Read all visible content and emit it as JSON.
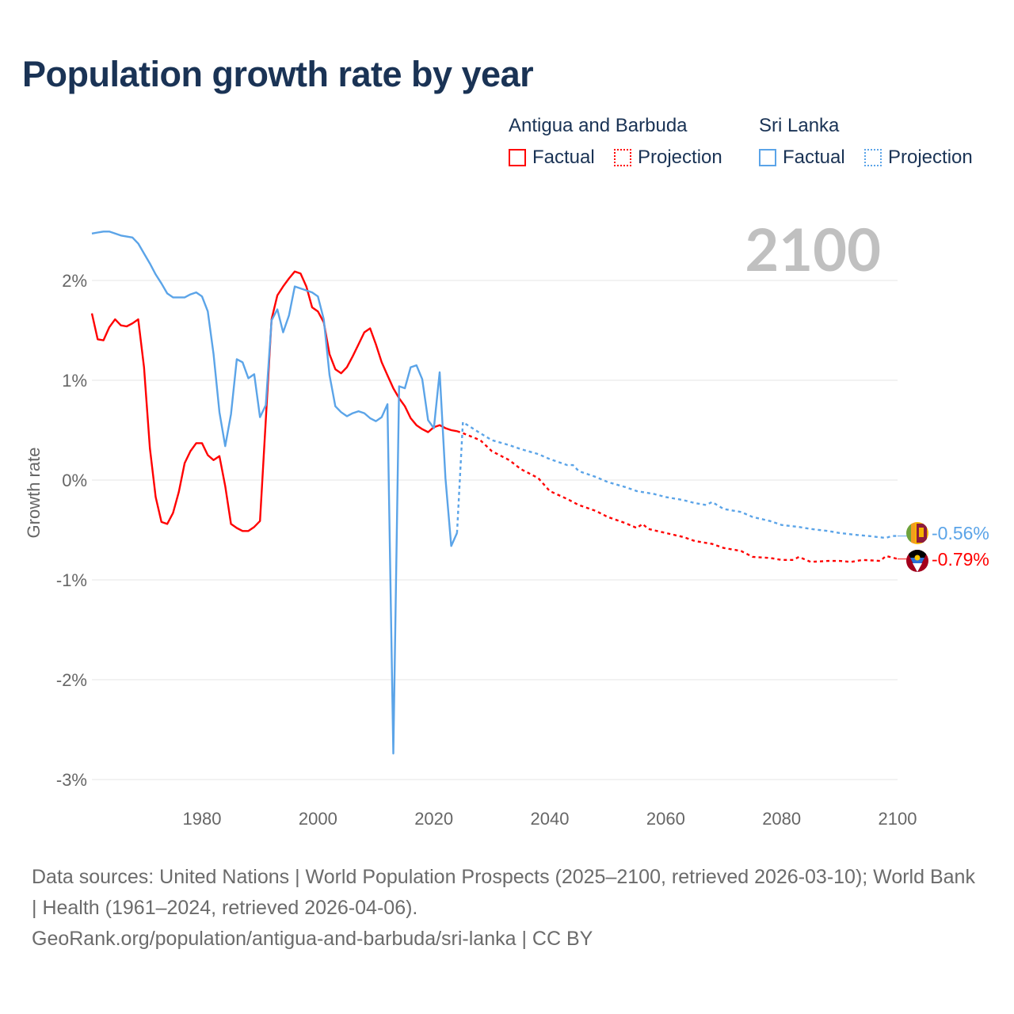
{
  "title": "Population growth rate by year",
  "legend": {
    "groups": [
      {
        "name": "Antigua and Barbuda",
        "color": "#ff0000",
        "factual": "Factual",
        "projection": "Projection"
      },
      {
        "name": "Sri Lanka",
        "color": "#5ba4e8",
        "factual": "Factual",
        "projection": "Projection"
      }
    ]
  },
  "year_label": "2100",
  "end_labels": {
    "sri_lanka": "-0.56%",
    "antigua": "-0.79%"
  },
  "footer": {
    "sources": "Data sources: United Nations | World Population Prospects (2025–2100, retrieved 2026-03-10); World Bank | Health (1961–2024, retrieved 2026-04-06).",
    "credit": "GeoRank.org/population/antigua-and-barbuda/sri-lanka | CC BY"
  },
  "chart_data": {
    "type": "line",
    "title": "Population growth rate by year",
    "xlabel": "",
    "ylabel": "Growth rate",
    "xlim": [
      1961,
      2100
    ],
    "ylim": [
      -3.2,
      2.6
    ],
    "x_ticks": [
      1980,
      2000,
      2020,
      2040,
      2060,
      2080,
      2100
    ],
    "y_ticks": [
      2,
      1,
      0,
      -1,
      -2,
      -3
    ],
    "y_tick_labels": [
      "2%",
      "1%",
      "0%",
      "-1%",
      "-2%",
      "-3%"
    ],
    "grid": true,
    "legend_position": "top-right",
    "series": [
      {
        "name": "Antigua and Barbuda",
        "color": "#ff0000",
        "factual_start": 1961,
        "factual": [
          1.67,
          1.41,
          1.4,
          1.53,
          1.61,
          1.55,
          1.54,
          1.57,
          1.61,
          1.13,
          0.32,
          -0.17,
          -0.42,
          -0.44,
          -0.33,
          -0.12,
          0.17,
          0.29,
          0.37,
          0.37,
          0.25,
          0.2,
          0.24,
          -0.06,
          -0.44,
          -0.48,
          -0.51,
          -0.51,
          -0.47,
          -0.41,
          0.6,
          1.61,
          1.85,
          1.94,
          2.02,
          2.09,
          2.07,
          1.94,
          1.73,
          1.69,
          1.58,
          1.26,
          1.11,
          1.07,
          1.13,
          1.24,
          1.36,
          1.48,
          1.52,
          1.36,
          1.18,
          1.05,
          0.92,
          0.82,
          0.74,
          0.62,
          0.55,
          0.51,
          0.48,
          0.53,
          0.55,
          0.52,
          0.5,
          0.49
        ],
        "projection": [
          [
            2025,
            0.47
          ],
          [
            2028,
            0.4
          ],
          [
            2030,
            0.29
          ],
          [
            2033,
            0.2
          ],
          [
            2035,
            0.11
          ],
          [
            2038,
            0.02
          ],
          [
            2040,
            -0.11
          ],
          [
            2043,
            -0.19
          ],
          [
            2045,
            -0.25
          ],
          [
            2048,
            -0.31
          ],
          [
            2050,
            -0.37
          ],
          [
            2053,
            -0.43
          ],
          [
            2055,
            -0.48
          ],
          [
            2056,
            -0.44
          ],
          [
            2057,
            -0.49
          ],
          [
            2060,
            -0.53
          ],
          [
            2063,
            -0.57
          ],
          [
            2065,
            -0.61
          ],
          [
            2068,
            -0.64
          ],
          [
            2070,
            -0.68
          ],
          [
            2073,
            -0.71
          ],
          [
            2075,
            -0.77
          ],
          [
            2078,
            -0.78
          ],
          [
            2080,
            -0.8
          ],
          [
            2082,
            -0.8
          ],
          [
            2083,
            -0.77
          ],
          [
            2085,
            -0.82
          ],
          [
            2088,
            -0.81
          ],
          [
            2090,
            -0.81
          ],
          [
            2092,
            -0.82
          ],
          [
            2094,
            -0.8
          ],
          [
            2097,
            -0.81
          ],
          [
            2098,
            -0.76
          ],
          [
            2100,
            -0.79
          ]
        ]
      },
      {
        "name": "Sri Lanka",
        "color": "#5ba4e8",
        "factual_start": 1961,
        "factual": [
          2.47,
          2.48,
          2.49,
          2.49,
          2.47,
          2.45,
          2.44,
          2.43,
          2.37,
          2.27,
          2.17,
          2.06,
          1.97,
          1.87,
          1.83,
          1.83,
          1.83,
          1.86,
          1.88,
          1.84,
          1.69,
          1.26,
          0.68,
          0.34,
          0.66,
          1.21,
          1.18,
          1.02,
          1.06,
          0.63,
          0.75,
          1.6,
          1.71,
          1.48,
          1.65,
          1.94,
          1.92,
          1.9,
          1.88,
          1.84,
          1.61,
          1.05,
          0.74,
          0.68,
          0.64,
          0.67,
          0.69,
          0.67,
          0.62,
          0.59,
          0.63,
          0.76,
          -2.74,
          0.94,
          0.92,
          1.13,
          1.15,
          1.01,
          0.6,
          0.52,
          1.08,
          0.02,
          -0.66,
          -0.53
        ],
        "projection": [
          [
            2025,
            0.58
          ],
          [
            2028,
            0.47
          ],
          [
            2030,
            0.4
          ],
          [
            2033,
            0.35
          ],
          [
            2035,
            0.31
          ],
          [
            2038,
            0.26
          ],
          [
            2040,
            0.21
          ],
          [
            2043,
            0.15
          ],
          [
            2044,
            0.15
          ],
          [
            2045,
            0.09
          ],
          [
            2048,
            0.03
          ],
          [
            2050,
            -0.02
          ],
          [
            2053,
            -0.07
          ],
          [
            2055,
            -0.11
          ],
          [
            2058,
            -0.14
          ],
          [
            2060,
            -0.17
          ],
          [
            2063,
            -0.2
          ],
          [
            2065,
            -0.23
          ],
          [
            2067,
            -0.25
          ],
          [
            2068,
            -0.22
          ],
          [
            2070,
            -0.29
          ],
          [
            2073,
            -0.32
          ],
          [
            2075,
            -0.37
          ],
          [
            2078,
            -0.41
          ],
          [
            2080,
            -0.45
          ],
          [
            2083,
            -0.47
          ],
          [
            2085,
            -0.49
          ],
          [
            2088,
            -0.51
          ],
          [
            2090,
            -0.53
          ],
          [
            2093,
            -0.55
          ],
          [
            2095,
            -0.56
          ],
          [
            2098,
            -0.58
          ],
          [
            2099,
            -0.56
          ],
          [
            2100,
            -0.56
          ]
        ]
      }
    ]
  }
}
